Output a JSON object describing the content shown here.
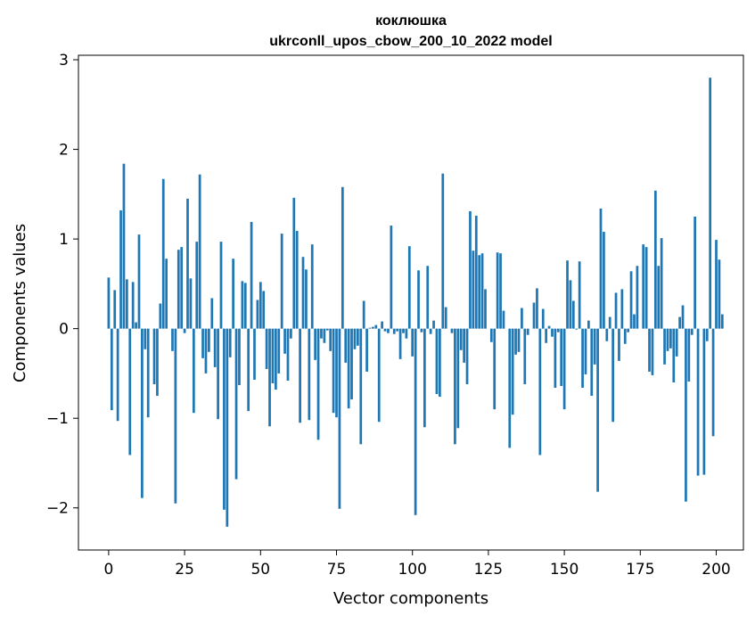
{
  "chart_data": {
    "type": "bar",
    "title_line1": "коклюшка",
    "title_line2": "ukrconll_upos_cbow_200_10_2022 model",
    "xlabel": "Vector components",
    "ylabel": "Components values",
    "xlim": [
      -9.95,
      208.95
    ],
    "ylim": [
      -2.47,
      3.05
    ],
    "xticks": [
      0,
      25,
      50,
      75,
      100,
      125,
      150,
      175,
      200
    ],
    "yticks": [
      -2,
      -1,
      0,
      1,
      2,
      3
    ],
    "ytick_labels": [
      "−2",
      "−1",
      "0",
      "1",
      "2",
      "3"
    ],
    "bar_color": "#1f77b4",
    "grid": false,
    "values": [
      0.57,
      -0.91,
      0.43,
      -1.03,
      1.32,
      1.84,
      0.55,
      -1.41,
      0.52,
      0.07,
      1.05,
      -1.89,
      -0.23,
      -0.99,
      0.0,
      -0.62,
      -0.75,
      0.28,
      1.67,
      0.78,
      0.0,
      -0.25,
      -1.95,
      0.88,
      0.91,
      -0.05,
      1.45,
      0.56,
      -0.94,
      0.97,
      1.72,
      -0.33,
      -0.5,
      -0.26,
      0.34,
      -0.43,
      -1.01,
      0.97,
      -2.02,
      -2.21,
      -0.32,
      0.78,
      -1.68,
      -0.63,
      0.53,
      0.51,
      -0.92,
      1.19,
      -0.57,
      0.32,
      0.52,
      0.42,
      -0.45,
      -1.09,
      -0.61,
      -0.68,
      -0.5,
      1.06,
      -0.28,
      -0.58,
      -0.11,
      1.46,
      1.09,
      -1.05,
      0.8,
      0.66,
      -1.02,
      0.94,
      -0.35,
      -1.24,
      -0.11,
      -0.16,
      -0.02,
      -0.25,
      -0.94,
      -0.99,
      -2.01,
      1.58,
      -0.38,
      -0.89,
      -0.79,
      -0.23,
      -0.19,
      -1.29,
      0.31,
      -0.48,
      0.01,
      0.02,
      0.04,
      -1.04,
      0.08,
      -0.03,
      -0.05,
      1.15,
      -0.06,
      -0.03,
      -0.34,
      -0.05,
      -0.11,
      0.92,
      -0.31,
      -2.08,
      0.65,
      -0.04,
      -1.1,
      0.7,
      -0.06,
      0.09,
      -0.73,
      -0.76,
      1.73,
      0.24,
      0.0,
      -0.05,
      -1.29,
      -1.11,
      -0.24,
      -0.38,
      -0.62,
      1.31,
      0.87,
      1.26,
      0.82,
      0.84,
      0.44,
      0.0,
      -0.15,
      -0.9,
      0.85,
      0.84,
      0.2,
      0.0,
      -1.33,
      -0.96,
      -0.29,
      -0.26,
      0.23,
      -0.62,
      -0.07,
      0.0,
      0.29,
      0.45,
      -1.41,
      0.22,
      -0.16,
      0.03,
      -0.09,
      -0.66,
      -0.04,
      -0.64,
      -0.9,
      0.76,
      0.54,
      0.31,
      -0.01,
      0.75,
      -0.66,
      -0.51,
      0.09,
      -0.75,
      -0.4,
      -1.82,
      1.34,
      1.08,
      -0.14,
      0.13,
      -1.04,
      0.4,
      -0.36,
      0.44,
      -0.17,
      -0.04,
      0.64,
      0.16,
      0.7,
      0.0,
      0.94,
      0.91,
      -0.48,
      -0.52,
      1.54,
      0.7,
      1.01,
      -0.4,
      -0.25,
      -0.22,
      -0.6,
      -0.31,
      0.13,
      0.26,
      -1.93,
      -0.59,
      -0.07,
      1.25,
      -1.64,
      0.0,
      -1.63,
      -0.14,
      2.8,
      -1.2,
      0.99,
      0.77,
      0.16
    ]
  }
}
